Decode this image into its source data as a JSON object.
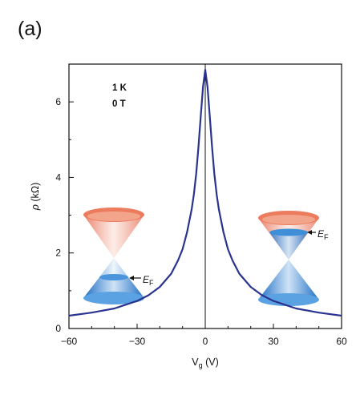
{
  "panel_label": "(a)",
  "annotations": {
    "temperature": "1 K",
    "field": "0 T"
  },
  "ef_label": {
    "main": "E",
    "sub": "F"
  },
  "colors": {
    "curve": "#2a3490",
    "cone_upper": "#e8765a",
    "cone_lower": "#2b7fcf",
    "fermi_disk": "#3f8fd8"
  },
  "chart_data": {
    "type": "line",
    "xlabel": {
      "main": "V",
      "sub": "g",
      "unit": " (V)"
    },
    "ylabel": {
      "symbol": "ρ",
      "unit": " (kΩ)"
    },
    "xlim": [
      -60,
      60
    ],
    "ylim": [
      0,
      7
    ],
    "xticks": [
      -60,
      -30,
      0,
      30,
      60
    ],
    "yticks": [
      0,
      2,
      4,
      6
    ],
    "xtick_labels": [
      "−60",
      "−30",
      "0",
      "30",
      "60"
    ],
    "ytick_labels": [
      "0",
      "2",
      "4",
      "6"
    ],
    "series": [
      {
        "x": [
          -60,
          -50,
          -40,
          -30,
          -25,
          -20,
          -15,
          -12,
          -10,
          -8,
          -6,
          -5,
          -4,
          -3,
          -2,
          -1,
          0,
          1,
          2,
          3,
          4,
          5,
          6,
          8,
          10,
          12,
          15,
          20,
          25,
          30,
          40,
          50,
          60
        ],
        "y": [
          0.34,
          0.42,
          0.53,
          0.73,
          0.88,
          1.1,
          1.45,
          1.8,
          2.1,
          2.55,
          3.15,
          3.55,
          4.1,
          4.8,
          5.6,
          6.4,
          6.85,
          6.4,
          5.6,
          4.8,
          4.1,
          3.55,
          3.15,
          2.55,
          2.1,
          1.8,
          1.45,
          1.1,
          0.88,
          0.73,
          0.53,
          0.42,
          0.34
        ]
      }
    ]
  }
}
